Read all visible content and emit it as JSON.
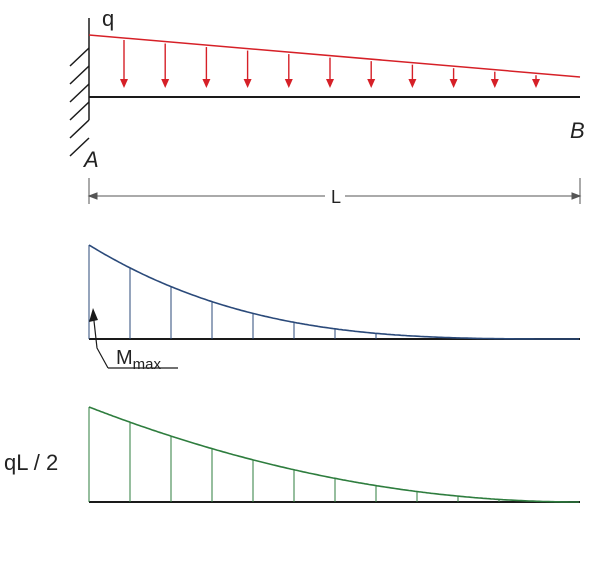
{
  "labels": {
    "load": "q",
    "support_left": "A",
    "support_right": "B",
    "span": "L",
    "moment_main": "M",
    "moment_sub": "max",
    "shear_value": "qL / 2"
  },
  "colors": {
    "load": "#d62027",
    "beam": "#1a1a1a",
    "moment": "#2b4a7a",
    "shear": "#2e7d3e",
    "text": "#222222"
  }
}
